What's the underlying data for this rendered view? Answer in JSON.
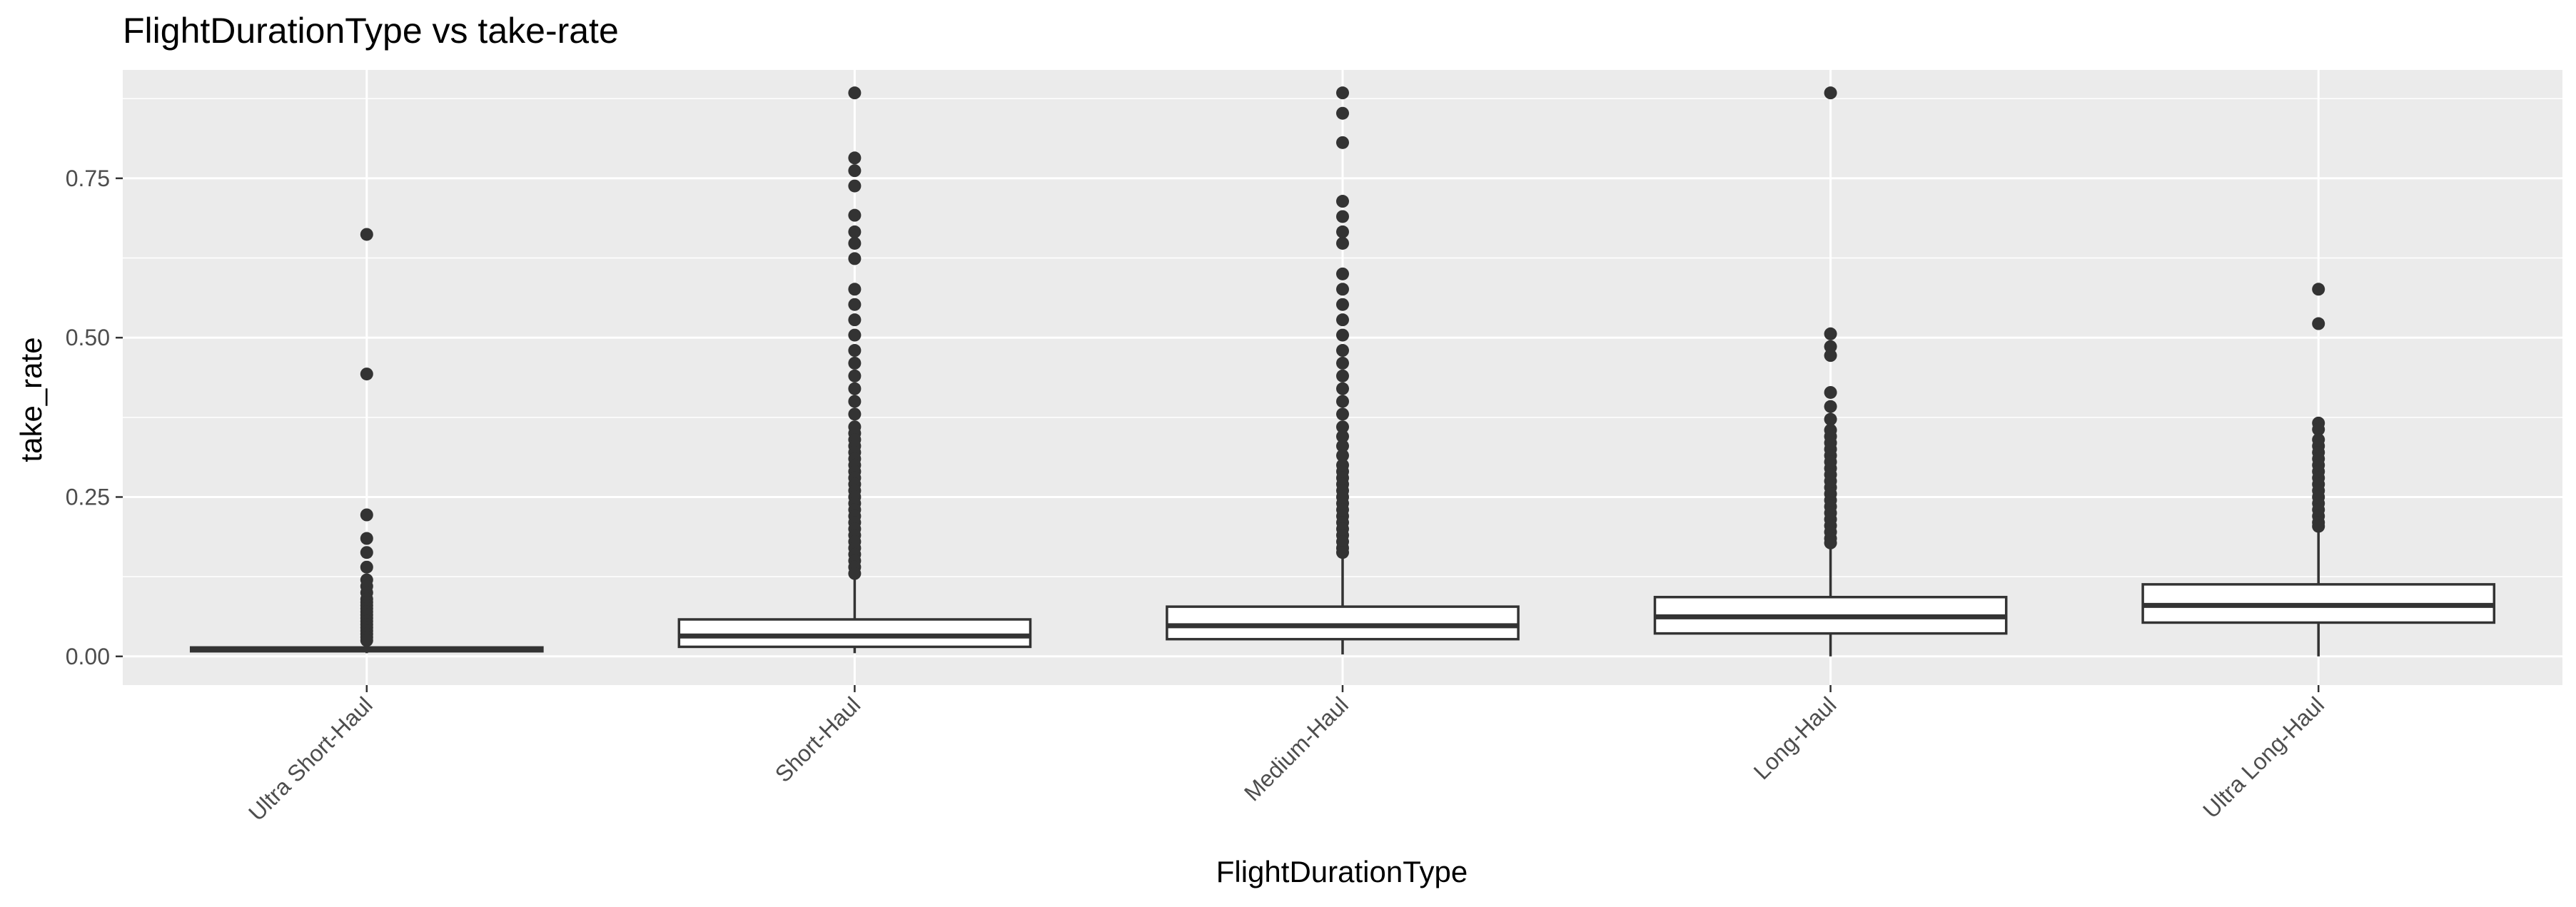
{
  "chart_data": {
    "type": "box",
    "title": "FlightDurationType vs take-rate",
    "xlabel": "FlightDurationType",
    "ylabel": "take_rate",
    "ylim": [
      -0.045,
      0.92
    ],
    "yticks": [
      0.0,
      0.25,
      0.5,
      0.75
    ],
    "ytick_labels": [
      "0.00",
      "0.25",
      "0.50",
      "0.75"
    ],
    "grid": true,
    "panel_background": "#ebebeb",
    "grid_color": "#ffffff",
    "box_fill": "#ffffff",
    "box_stroke": "#333333",
    "outlier_color": "#333333",
    "categories": [
      "Ultra Short-Haul",
      "Short-Haul",
      "Medium-Haul",
      "Long-Haul",
      "Ultra Long-Haul"
    ],
    "boxes": [
      {
        "category": "Ultra Short-Haul",
        "whisker_low": 0.005,
        "q1": 0.008,
        "median": 0.011,
        "q3": 0.014,
        "whisker_high": 0.02,
        "outliers": [
          0.662,
          0.443,
          0.222,
          0.185,
          0.163,
          0.14,
          0.12,
          0.11,
          0.1,
          0.09,
          0.085,
          0.08,
          0.075,
          0.07,
          0.065,
          0.06,
          0.055,
          0.05,
          0.045,
          0.04,
          0.035,
          0.03,
          0.025
        ]
      },
      {
        "category": "Short-Haul",
        "whisker_low": 0.005,
        "q1": 0.015,
        "median": 0.032,
        "q3": 0.058,
        "whisker_high": 0.122,
        "outliers": [
          0.884,
          0.782,
          0.762,
          0.738,
          0.692,
          0.666,
          0.648,
          0.624,
          0.576,
          0.552,
          0.528,
          0.504,
          0.48,
          0.46,
          0.44,
          0.42,
          0.4,
          0.38,
          0.36,
          0.35,
          0.34,
          0.33,
          0.32,
          0.31,
          0.3,
          0.29,
          0.28,
          0.27,
          0.26,
          0.25,
          0.24,
          0.23,
          0.22,
          0.21,
          0.2,
          0.19,
          0.18,
          0.17,
          0.16,
          0.15,
          0.14,
          0.13
        ]
      },
      {
        "category": "Medium-Haul",
        "whisker_low": 0.003,
        "q1": 0.027,
        "median": 0.048,
        "q3": 0.078,
        "whisker_high": 0.155,
        "outliers": [
          0.884,
          0.852,
          0.806,
          0.714,
          0.69,
          0.666,
          0.648,
          0.6,
          0.576,
          0.552,
          0.528,
          0.504,
          0.48,
          0.46,
          0.44,
          0.42,
          0.4,
          0.38,
          0.36,
          0.345,
          0.33,
          0.315,
          0.3,
          0.29,
          0.28,
          0.27,
          0.26,
          0.25,
          0.24,
          0.23,
          0.22,
          0.21,
          0.2,
          0.19,
          0.18,
          0.17,
          0.163
        ]
      },
      {
        "category": "Long-Haul",
        "whisker_low": 0.0,
        "q1": 0.036,
        "median": 0.062,
        "q3": 0.093,
        "whisker_high": 0.172,
        "outliers": [
          0.884,
          0.506,
          0.486,
          0.472,
          0.414,
          0.392,
          0.372,
          0.355,
          0.345,
          0.335,
          0.325,
          0.315,
          0.305,
          0.295,
          0.285,
          0.275,
          0.265,
          0.255,
          0.245,
          0.235,
          0.225,
          0.215,
          0.205,
          0.195,
          0.185,
          0.178
        ]
      },
      {
        "category": "Ultra Long-Haul",
        "whisker_low": 0.0,
        "q1": 0.053,
        "median": 0.08,
        "q3": 0.113,
        "whisker_high": 0.2,
        "outliers": [
          0.576,
          0.522,
          0.366,
          0.356,
          0.34,
          0.33,
          0.32,
          0.31,
          0.3,
          0.29,
          0.28,
          0.27,
          0.26,
          0.25,
          0.24,
          0.23,
          0.22,
          0.21,
          0.204
        ]
      }
    ]
  }
}
